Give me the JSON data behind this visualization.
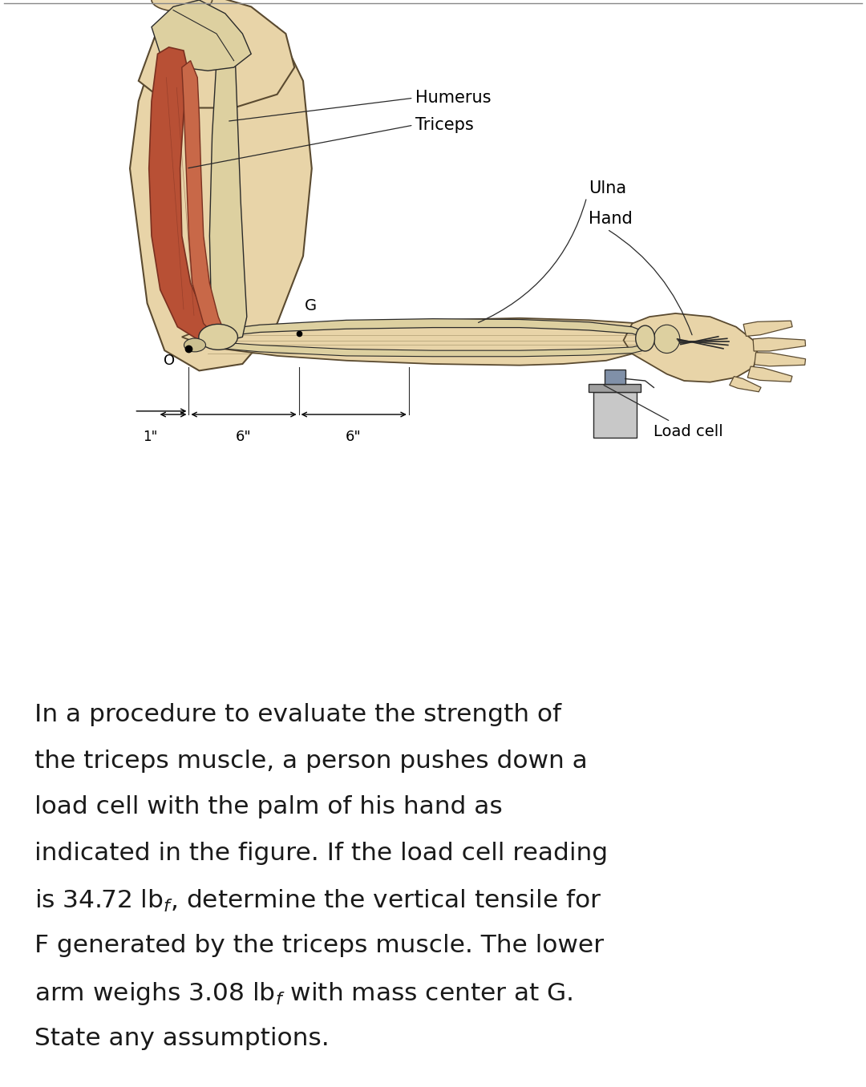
{
  "background_color": "#ffffff",
  "fig_width": 10.8,
  "fig_height": 13.56,
  "skin_color": "#e8d4a8",
  "skin_edge": "#5a4a30",
  "muscle_fill": "#b85035",
  "muscle_fill2": "#c86848",
  "muscle_edge": "#7a3020",
  "bone_fill": "#ddd0a0",
  "bone_edge": "#888060",
  "line_color": "#2a2a2a",
  "dim_color": "#000000",
  "text_color": "#1a1a1a",
  "label_fontsize": 15,
  "text_fontsize": 22.5,
  "text_lines": [
    "In a procedure to evaluate the strength of",
    "the triceps muscle, a person pushes down a",
    "load cell with the palm of his hand as",
    "indicated in the figure. If the load cell reading",
    "is 34.72 lb$_f$, determine the vertical tensile for",
    "F generated by the triceps muscle. The lower",
    "arm weighs 3.08 lb$_f$ with mass center at G.",
    "State any assumptions."
  ]
}
